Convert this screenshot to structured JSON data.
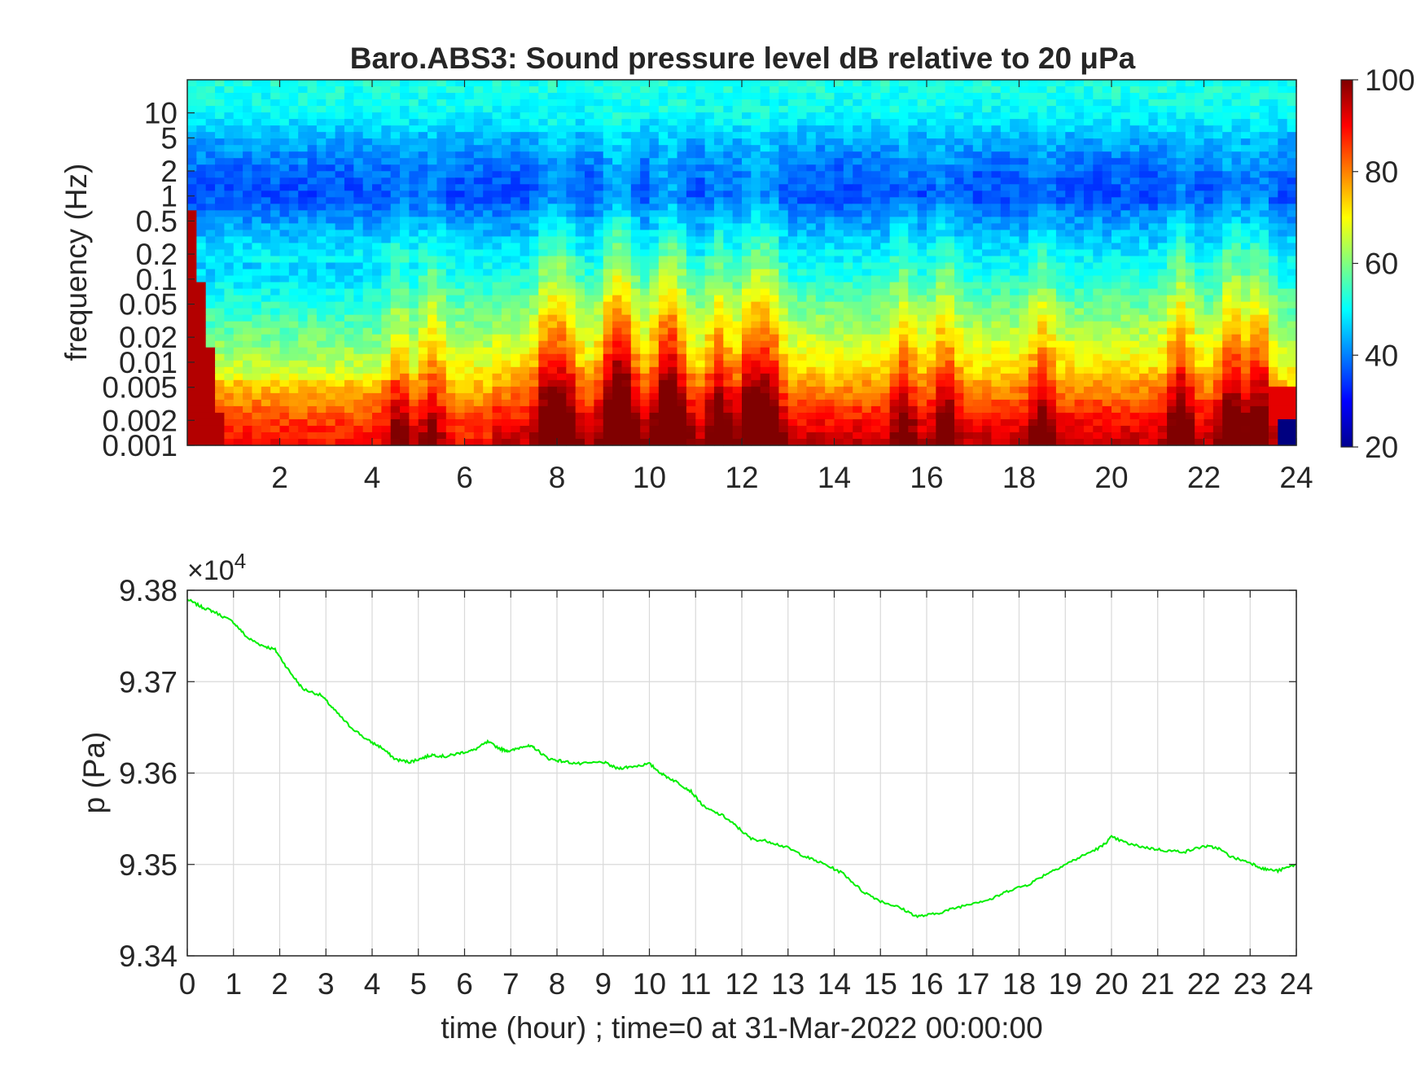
{
  "chart_data": [
    {
      "type": "heatmap",
      "title": "Baro.ABS3: Sound pressure level dB relative to 20 μPa",
      "ylabel": "frequency (Hz)",
      "xlabel": "",
      "x_ticks": [
        "2",
        "4",
        "6",
        "8",
        "10",
        "12",
        "14",
        "16",
        "18",
        "20",
        "22",
        "24"
      ],
      "x_tick_values": [
        2,
        4,
        6,
        8,
        10,
        12,
        14,
        16,
        18,
        20,
        22,
        24
      ],
      "y_ticks": [
        "10",
        "5",
        "2",
        "1",
        "0.5",
        "0.2",
        "0.1",
        "0.05",
        "0.02",
        "0.01",
        "0.005",
        "0.002",
        "0.001"
      ],
      "y_tick_values": [
        10,
        5,
        2,
        1,
        0.5,
        0.2,
        0.1,
        0.05,
        0.02,
        0.01,
        0.005,
        0.002,
        0.001
      ],
      "xlim": [
        0,
        24
      ],
      "ylim": [
        0.001,
        25
      ],
      "yscale": "log",
      "colormap": "jet",
      "colorbar": {
        "ticks": [
          "100",
          "80",
          "60",
          "40",
          "20"
        ],
        "tick_values": [
          100,
          80,
          60,
          40,
          20
        ],
        "clim": [
          20,
          100
        ]
      },
      "approx_level_by_frequency": {
        "frequency_hz": [
          0.001,
          0.002,
          0.005,
          0.01,
          0.02,
          0.05,
          0.1,
          0.2,
          0.5,
          1,
          2,
          5,
          10,
          20
        ],
        "baseline_db": [
          90,
          85,
          75,
          68,
          63,
          57,
          52,
          49,
          42,
          36,
          38,
          44,
          50,
          52
        ]
      },
      "burst_hours": [
        4.6,
        5.3,
        7.8,
        8.2,
        9.2,
        9.5,
        10.3,
        10.6,
        11.5,
        12.2,
        12.6,
        15.5,
        16.4,
        18.5,
        21.5,
        22.6,
        23.2
      ],
      "burst_strength": [
        0.55,
        0.5,
        0.8,
        0.7,
        0.9,
        0.85,
        0.8,
        0.7,
        0.75,
        0.85,
        0.8,
        0.55,
        0.6,
        0.55,
        0.75,
        0.8,
        0.75
      ]
    },
    {
      "type": "line",
      "xlabel": "time (hour) ; time=0 at 31-Mar-2022 00:00:00",
      "ylabel": "p (Pa)",
      "exponent_label": "×10",
      "exponent_power": "4",
      "x_ticks": [
        "0",
        "1",
        "2",
        "3",
        "4",
        "5",
        "6",
        "7",
        "8",
        "9",
        "10",
        "11",
        "12",
        "13",
        "14",
        "15",
        "16",
        "17",
        "18",
        "19",
        "20",
        "21",
        "22",
        "23",
        "24"
      ],
      "y_ticks": [
        "9.38",
        "9.37",
        "9.36",
        "9.35",
        "9.34"
      ],
      "y_tick_values": [
        93800,
        93700,
        93600,
        93500,
        93400
      ],
      "xlim": [
        0,
        24
      ],
      "ylim": [
        93400,
        93800
      ],
      "grid": true,
      "line_color": "#00ee00",
      "series": [
        {
          "x": [
            0,
            0.3,
            0.6,
            1.0,
            1.3,
            1.6,
            1.9,
            2.2,
            2.5,
            2.9,
            3.2,
            3.5,
            3.9,
            4.2,
            4.5,
            4.8,
            5.0,
            5.3,
            5.6,
            5.9,
            6.2,
            6.5,
            6.8,
            7.0,
            7.3,
            7.5,
            7.8,
            8.1,
            8.5,
            9.0,
            9.3,
            9.6,
            10.0,
            10.3,
            10.6,
            10.9,
            11.2,
            11.6,
            11.9,
            12.2,
            12.6,
            13.0,
            13.4,
            13.8,
            14.2,
            14.6,
            15.0,
            15.4,
            15.8,
            16.2,
            16.6,
            17.0,
            17.4,
            17.8,
            18.2,
            18.6,
            19.0,
            19.4,
            19.8,
            20.0,
            20.4,
            20.8,
            21.2,
            21.6,
            22.0,
            22.3,
            22.6,
            23.0,
            23.3,
            23.6,
            24.0
          ],
          "y": [
            93790,
            93782,
            93776,
            93765,
            93748,
            93740,
            93735,
            93712,
            93692,
            93685,
            93668,
            93652,
            93636,
            93628,
            93615,
            93612,
            93615,
            93620,
            93618,
            93622,
            93625,
            93634,
            93626,
            93624,
            93630,
            93628,
            93616,
            93613,
            93610,
            93612,
            93605,
            93607,
            93610,
            93598,
            93590,
            93580,
            93562,
            93553,
            93541,
            93528,
            93525,
            93518,
            93508,
            93500,
            93490,
            93471,
            93460,
            93453,
            93443,
            93446,
            93452,
            93458,
            93462,
            93472,
            93478,
            93490,
            93500,
            93510,
            93520,
            93530,
            93522,
            93518,
            93515,
            93514,
            93520,
            93518,
            93508,
            93502,
            93495,
            93493,
            93500
          ]
        }
      ]
    }
  ]
}
